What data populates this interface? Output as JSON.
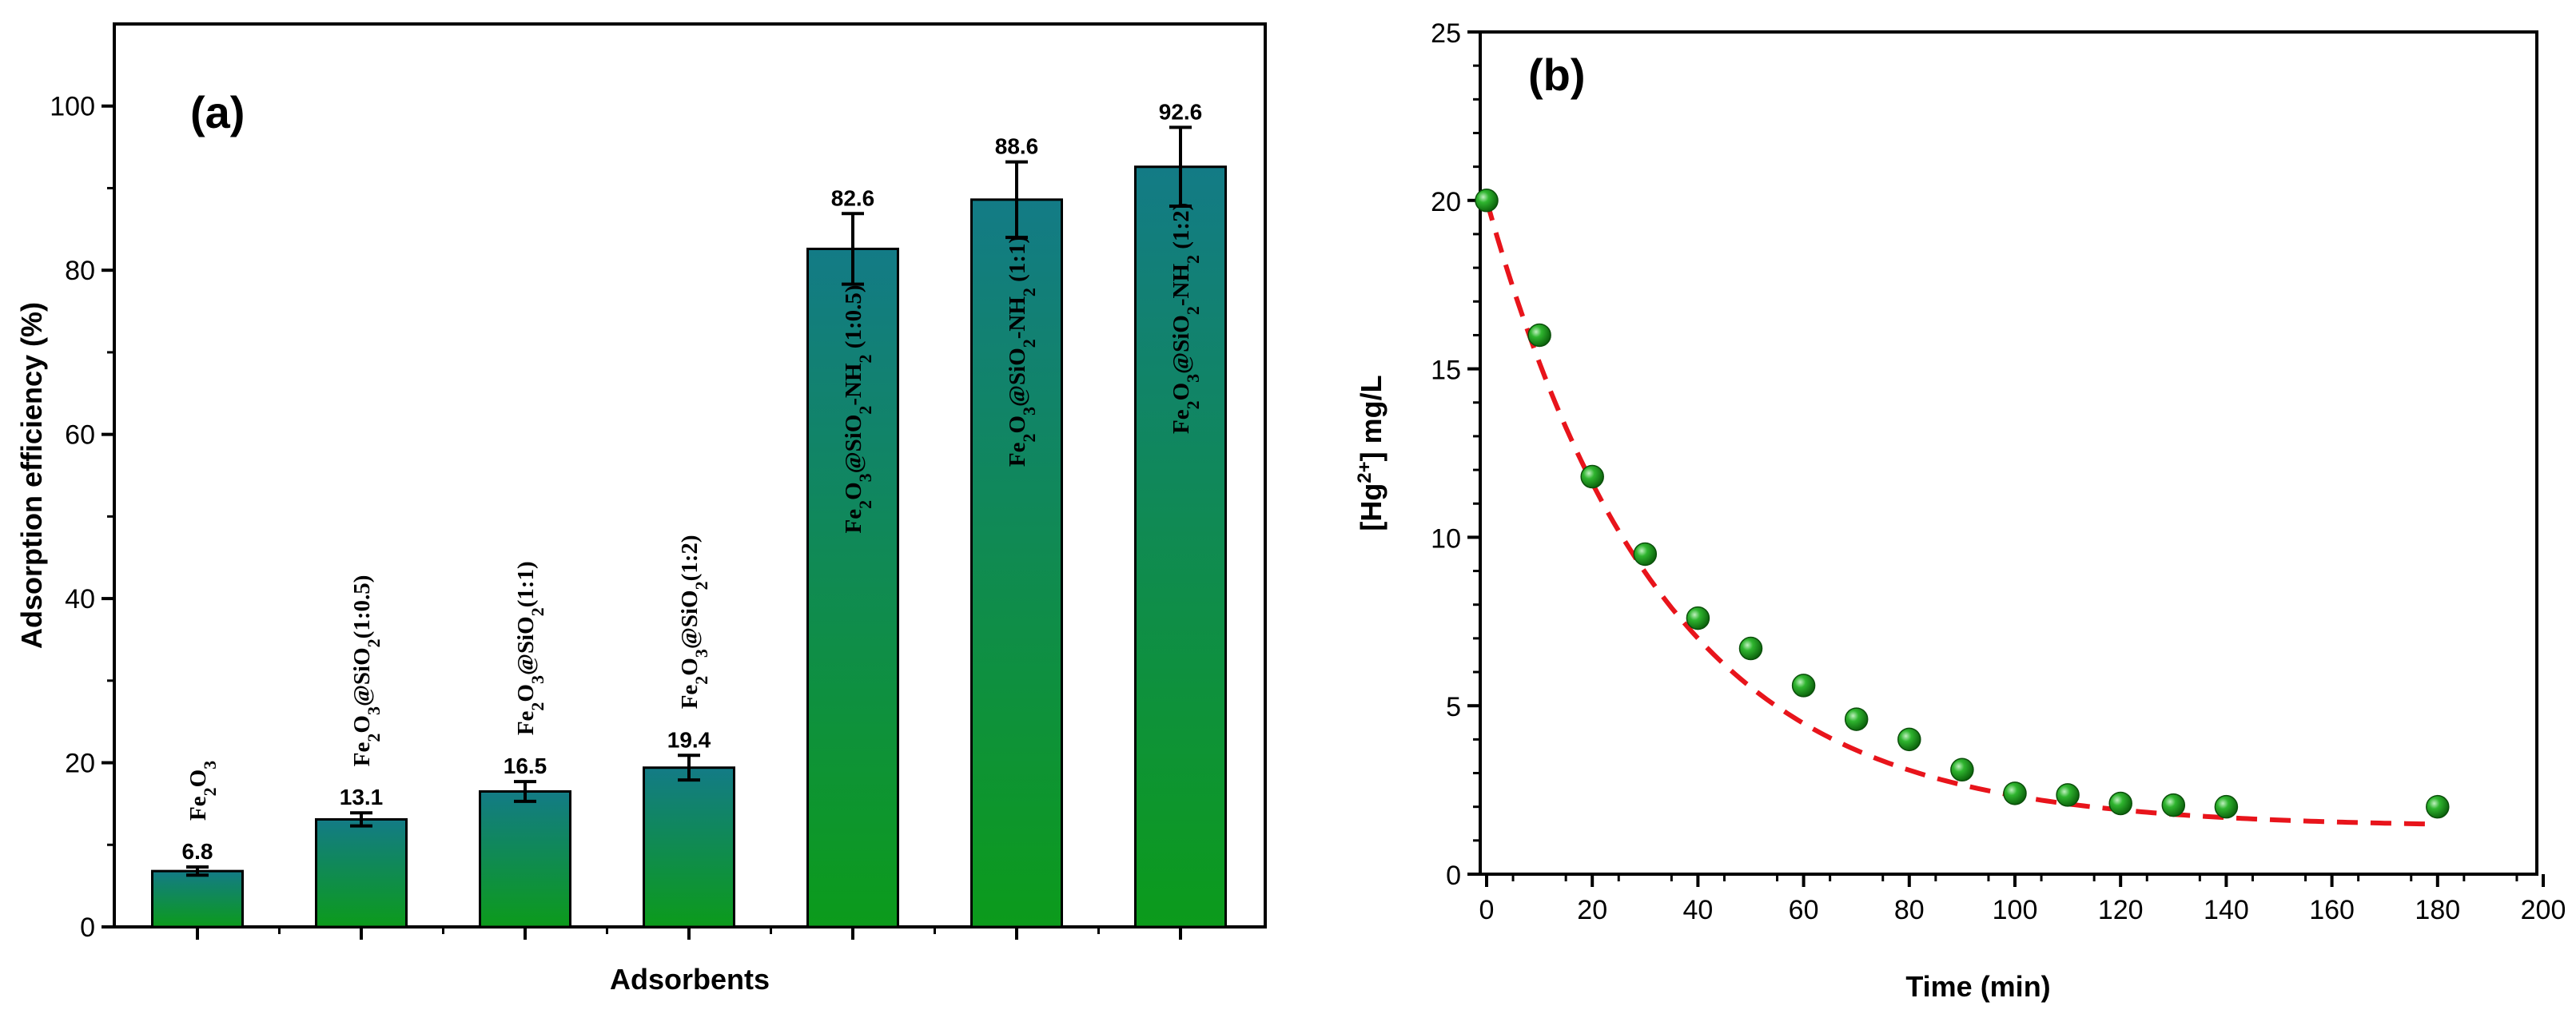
{
  "chart_data": [
    {
      "type": "bar",
      "panel_label": "(a)",
      "title": "",
      "xlabel": "Adsorbents",
      "ylabel": "Adsorption efficiency (%)",
      "ylim": [
        0,
        110
      ],
      "yticks": [
        0,
        20,
        40,
        60,
        80,
        100
      ],
      "grid": false,
      "categories": [
        "Fe2O3",
        "Fe2O3@SiO2(1:0.5)",
        "Fe2O3@SiO2(1:1)",
        "Fe2O3@SiO2(1:2)",
        "Fe2O3@SiO2-NH2 (1:0.5)",
        "Fe2O3@SiO2-NH2 (1:1)",
        "Fe2O3@SiO2-NH2 (1:2)"
      ],
      "values": [
        6.8,
        13.1,
        16.5,
        19.4,
        82.6,
        88.6,
        92.6
      ],
      "errors": [
        0.5,
        0.8,
        1.2,
        1.5,
        4.3,
        4.6,
        4.8
      ],
      "value_labels": [
        "6.8",
        "13.1",
        "16.5",
        "19.4",
        "82.6",
        "88.6",
        "92.6"
      ],
      "bar_gradient": [
        "#137b86",
        "#0c9b1b"
      ]
    },
    {
      "type": "scatter",
      "panel_label": "(b)",
      "title": "",
      "xlabel": "Time (min)",
      "ylabel": "[Hg2+] mg/L",
      "xlim": [
        0,
        200
      ],
      "ylim": [
        0,
        25
      ],
      "xticks": [
        0,
        20,
        40,
        60,
        80,
        100,
        120,
        140,
        160,
        180,
        200
      ],
      "yticks": [
        0,
        5,
        10,
        15,
        20,
        25
      ],
      "grid": false,
      "x": [
        0,
        10,
        20,
        30,
        40,
        50,
        60,
        70,
        80,
        90,
        100,
        110,
        120,
        130,
        140,
        180
      ],
      "y": [
        20.0,
        16.0,
        11.8,
        9.5,
        7.6,
        6.7,
        5.6,
        4.6,
        4.0,
        3.1,
        2.4,
        2.35,
        2.1,
        2.05,
        2.0,
        2.0
      ],
      "fit": {
        "style": "dashed",
        "color": "#e8141b",
        "model": "exponential decay",
        "y0": 18.6,
        "k": 0.03,
        "c": 1.4,
        "x_range": [
          0,
          180
        ]
      },
      "marker_color": "#159a15"
    }
  ]
}
